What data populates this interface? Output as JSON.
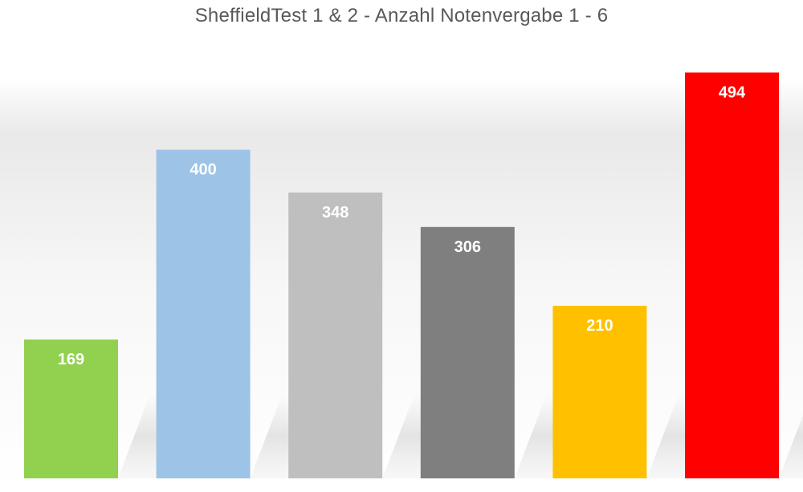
{
  "chart_data": {
    "type": "bar",
    "title": "SheffieldTest 1 & 2  -  Anzahl Notenvergabe 1 - 6",
    "xlabel": "",
    "ylabel": "",
    "categories": [
      "",
      "",
      "",
      "",
      "",
      ""
    ],
    "values": [
      169,
      400,
      348,
      306,
      210,
      494
    ],
    "colors": [
      "#92d050",
      "#9dc3e6",
      "#bfbfbf",
      "#7f7f7f",
      "#ffc000",
      "#ff0000"
    ],
    "ylim": [
      0,
      555
    ],
    "grid": false,
    "legend": "none",
    "data_labels": true
  }
}
